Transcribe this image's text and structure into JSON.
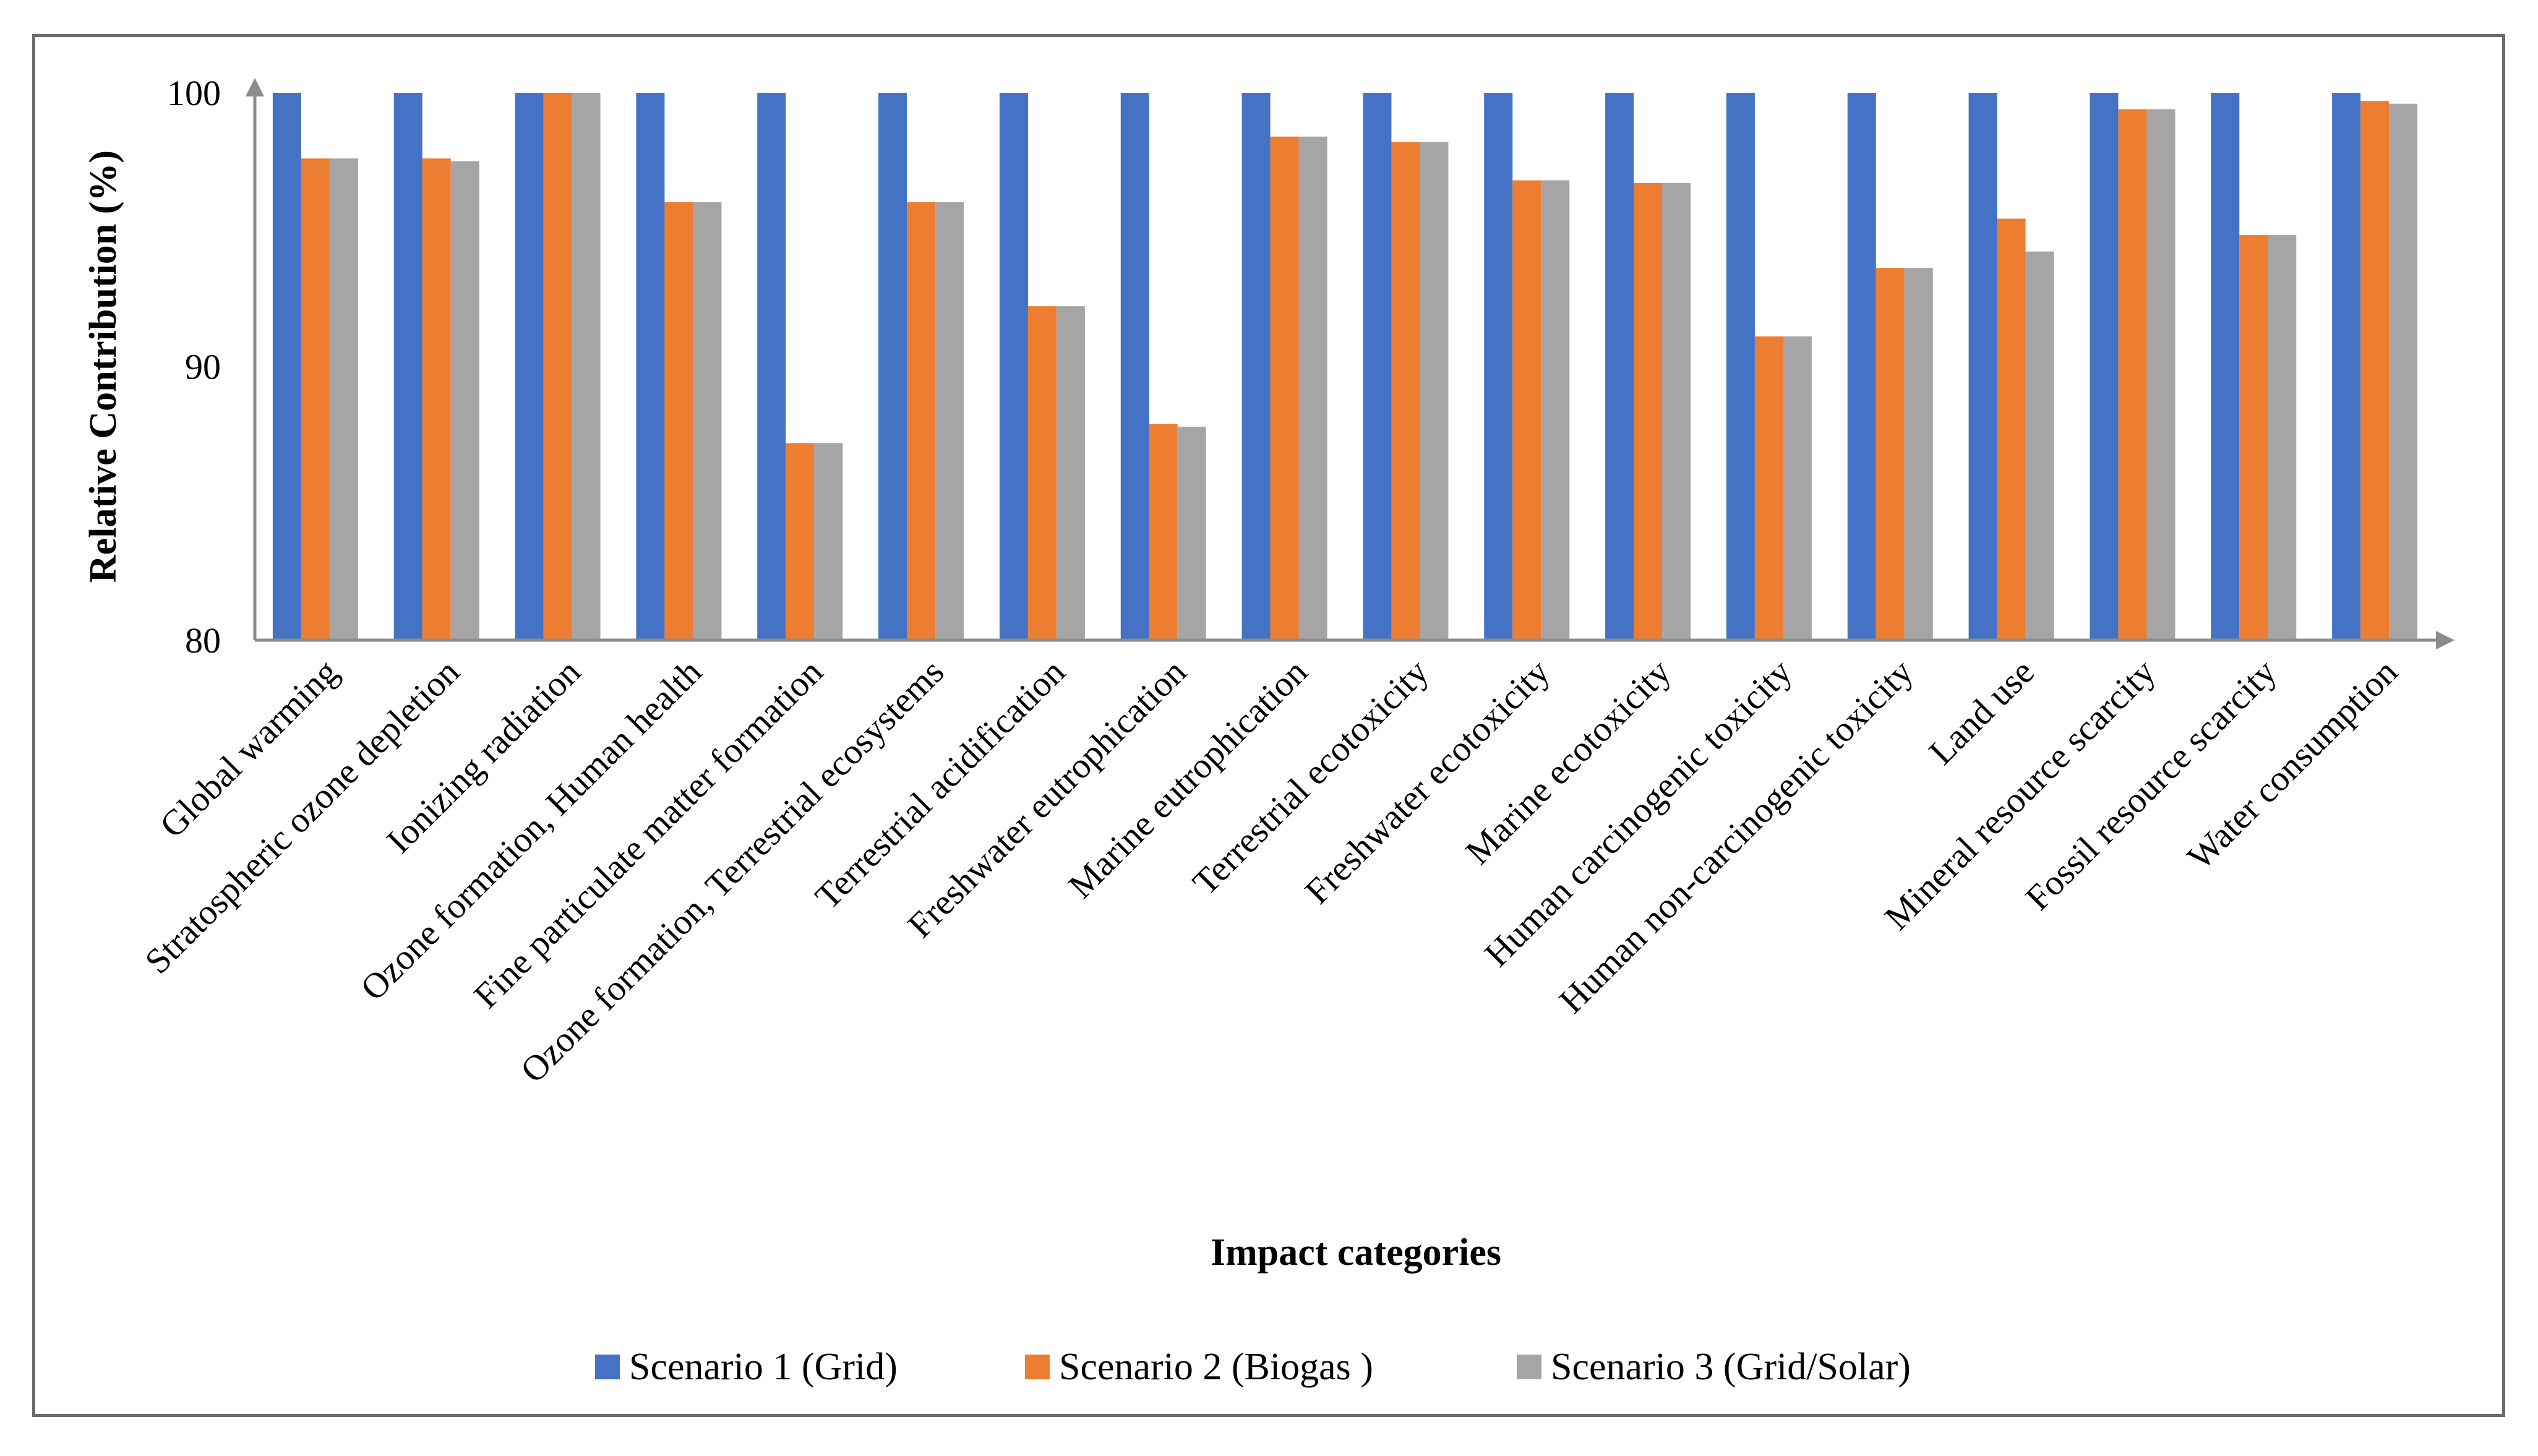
{
  "chart_data": {
    "type": "bar",
    "title": "",
    "xlabel": "Impact categories",
    "ylabel": "Relative Contribution (%)",
    "ylim": [
      80,
      100
    ],
    "yticks": [
      80,
      90,
      100
    ],
    "grid": false,
    "legend_position": "bottom",
    "categories": [
      "Global warming",
      "Stratospheric ozone depletion",
      "Ionizing radiation",
      "Ozone formation, Human health",
      "Fine particulate matter formation",
      "Ozone formation, Terrestrial ecosystems",
      "Terrestrial acidification",
      "Freshwater eutrophication",
      "Marine eutrophication",
      "Terrestrial ecotoxicity",
      "Freshwater ecotoxicity",
      "Marine ecotoxicity",
      "Human carcinogenic toxicity",
      "Human non-carcinogenic toxicity",
      "Land use",
      "Mineral resource scarcity",
      "Fossil resource scarcity",
      "Water consumption"
    ],
    "series": [
      {
        "name": "Scenario 1 (Grid)",
        "color": "#4472C4",
        "values": [
          100,
          100,
          100,
          100,
          100,
          100,
          100,
          100,
          100,
          100,
          100,
          100,
          100,
          100,
          100,
          100,
          100,
          100
        ]
      },
      {
        "name": "Scenario 2 (Biogas )",
        "color": "#ED7D31",
        "values": [
          97.6,
          97.6,
          100,
          96.0,
          87.2,
          96.0,
          92.2,
          87.9,
          98.4,
          98.2,
          96.8,
          96.7,
          91.1,
          93.6,
          95.4,
          99.4,
          94.8,
          99.7
        ]
      },
      {
        "name": "Scenario 3 (Grid/Solar)",
        "color": "#A5A5A5",
        "values": [
          97.6,
          97.5,
          100,
          96.0,
          87.2,
          96.0,
          92.2,
          87.8,
          98.4,
          98.2,
          96.8,
          96.7,
          91.1,
          93.6,
          94.2,
          99.4,
          94.8,
          99.6
        ]
      }
    ],
    "axis_color": "#8c8c8c"
  }
}
